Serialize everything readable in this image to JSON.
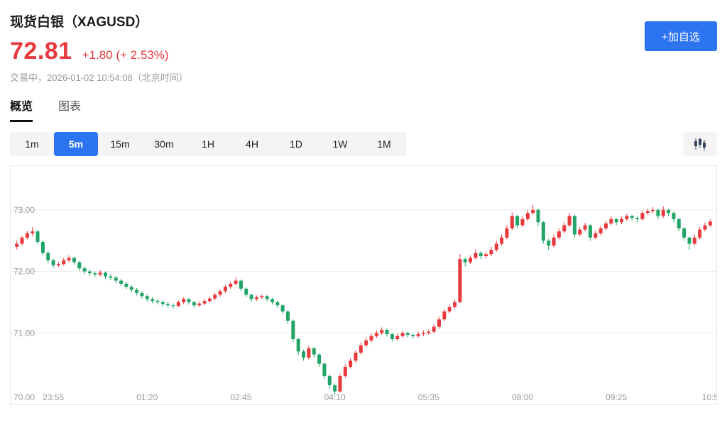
{
  "header": {
    "title": "现货白银（XAGUSD）",
    "price": "72.81",
    "change": "+1.80 (+ 2.53%)",
    "status": "交易中，2026-01-02 10:54:08（北京时间）",
    "watchlist_button": "+加自选"
  },
  "tabs": [
    {
      "label": "概览",
      "active": true
    },
    {
      "label": "图表",
      "active": false
    }
  ],
  "timeframes": {
    "options": [
      "1m",
      "5m",
      "15m",
      "30m",
      "1H",
      "4H",
      "1D",
      "1W",
      "1M"
    ],
    "active": "5m"
  },
  "colors": {
    "up": "#e8393d",
    "down": "#21a567",
    "red": "#e8393d",
    "accent": "#2d74f0",
    "axis_text": "#999999",
    "grid": "#ececec"
  },
  "chart_data": {
    "type": "candlestick",
    "symbol": "XAGUSD",
    "interval": "5m",
    "ylim": [
      69.85,
      73.7
    ],
    "grid": true,
    "y_ticks": [
      {
        "value": 73,
        "label": "73.00",
        "line": true
      },
      {
        "value": 72,
        "label": "72.00",
        "line": true
      },
      {
        "value": 71,
        "label": "71.00",
        "line": true
      },
      {
        "value": 70,
        "label": "70.00",
        "line": false
      }
    ],
    "x_ticks": [
      {
        "index": 7,
        "label": "23:55"
      },
      {
        "index": 25,
        "label": "01:20"
      },
      {
        "index": 43,
        "label": "02:45"
      },
      {
        "index": 61,
        "label": "04:10"
      },
      {
        "index": 79,
        "label": "05:35"
      },
      {
        "index": 97,
        "label": "08:00"
      },
      {
        "index": 115,
        "label": "09:25"
      },
      {
        "index": 133,
        "label": "10:5"
      }
    ],
    "candles": [
      [
        72.4,
        72.5,
        72.36,
        72.45
      ],
      [
        72.45,
        72.58,
        72.42,
        72.55
      ],
      [
        72.55,
        72.66,
        72.52,
        72.62
      ],
      [
        72.62,
        72.72,
        72.58,
        72.65
      ],
      [
        72.65,
        72.67,
        72.44,
        72.48
      ],
      [
        72.48,
        72.5,
        72.26,
        72.3
      ],
      [
        72.3,
        72.33,
        72.14,
        72.18
      ],
      [
        72.18,
        72.21,
        72.06,
        72.1
      ],
      [
        72.1,
        72.16,
        72.07,
        72.12
      ],
      [
        72.12,
        72.22,
        72.09,
        72.18
      ],
      [
        72.18,
        72.26,
        72.15,
        72.22
      ],
      [
        72.22,
        72.24,
        72.11,
        72.15
      ],
      [
        72.15,
        72.17,
        72.01,
        72.05
      ],
      [
        72.05,
        72.08,
        71.96,
        72.0
      ],
      [
        72.0,
        72.03,
        71.93,
        71.97
      ],
      [
        71.97,
        72.0,
        71.91,
        71.95
      ],
      [
        71.95,
        72.02,
        71.92,
        71.98
      ],
      [
        71.98,
        72.0,
        71.88,
        71.92
      ],
      [
        71.92,
        71.95,
        71.86,
        71.9
      ],
      [
        71.9,
        71.93,
        71.81,
        71.85
      ],
      [
        71.85,
        71.88,
        71.76,
        71.8
      ],
      [
        71.8,
        71.83,
        71.71,
        71.75
      ],
      [
        71.75,
        71.78,
        71.66,
        71.7
      ],
      [
        71.7,
        71.73,
        71.61,
        71.65
      ],
      [
        71.65,
        71.68,
        71.56,
        71.6
      ],
      [
        71.6,
        71.63,
        71.51,
        71.55
      ],
      [
        71.55,
        71.58,
        71.48,
        71.52
      ],
      [
        71.52,
        71.55,
        71.46,
        71.5
      ],
      [
        71.5,
        71.53,
        71.43,
        71.47
      ],
      [
        71.47,
        71.5,
        71.41,
        71.45
      ],
      [
        71.45,
        71.48,
        71.4,
        71.44
      ],
      [
        71.44,
        71.53,
        71.42,
        71.5
      ],
      [
        71.5,
        71.58,
        71.47,
        71.55
      ],
      [
        71.55,
        71.57,
        71.46,
        71.5
      ],
      [
        71.5,
        71.52,
        71.41,
        71.45
      ],
      [
        71.45,
        71.51,
        71.42,
        71.48
      ],
      [
        71.48,
        71.55,
        71.45,
        71.52
      ],
      [
        71.52,
        71.59,
        71.49,
        71.56
      ],
      [
        71.56,
        71.65,
        71.53,
        71.62
      ],
      [
        71.62,
        71.71,
        71.59,
        71.68
      ],
      [
        71.68,
        71.78,
        71.65,
        71.75
      ],
      [
        71.75,
        71.83,
        71.72,
        71.8
      ],
      [
        71.8,
        71.9,
        71.77,
        71.85
      ],
      [
        71.85,
        71.87,
        71.68,
        71.72
      ],
      [
        71.72,
        71.74,
        71.58,
        71.62
      ],
      [
        71.62,
        71.64,
        71.51,
        71.55
      ],
      [
        71.55,
        71.61,
        71.52,
        71.58
      ],
      [
        71.58,
        71.63,
        71.55,
        71.6
      ],
      [
        71.6,
        71.62,
        71.51,
        71.55
      ],
      [
        71.55,
        71.57,
        71.46,
        71.5
      ],
      [
        71.5,
        71.52,
        71.41,
        71.45
      ],
      [
        71.45,
        71.47,
        71.31,
        71.35
      ],
      [
        71.35,
        71.37,
        71.15,
        71.2
      ],
      [
        71.2,
        71.22,
        70.85,
        70.9
      ],
      [
        70.9,
        70.92,
        70.64,
        70.7
      ],
      [
        70.7,
        70.73,
        70.55,
        70.6
      ],
      [
        70.6,
        70.79,
        70.57,
        70.75
      ],
      [
        70.75,
        70.77,
        70.6,
        70.65
      ],
      [
        70.65,
        70.67,
        70.45,
        70.5
      ],
      [
        70.5,
        70.52,
        70.25,
        70.3
      ],
      [
        70.3,
        70.33,
        70.1,
        70.15
      ],
      [
        70.15,
        70.18,
        70.0,
        70.05
      ],
      [
        70.05,
        70.34,
        70.03,
        70.3
      ],
      [
        70.3,
        70.49,
        70.27,
        70.45
      ],
      [
        70.45,
        70.59,
        70.42,
        70.55
      ],
      [
        70.55,
        70.72,
        70.52,
        70.68
      ],
      [
        70.68,
        70.84,
        70.65,
        70.8
      ],
      [
        70.8,
        70.92,
        70.77,
        70.88
      ],
      [
        70.88,
        70.99,
        70.85,
        70.95
      ],
      [
        70.95,
        71.04,
        70.92,
        71.0
      ],
      [
        71.0,
        71.09,
        70.97,
        71.05
      ],
      [
        71.05,
        71.07,
        70.94,
        70.98
      ],
      [
        70.98,
        71.0,
        70.86,
        70.9
      ],
      [
        70.9,
        70.99,
        70.87,
        70.95
      ],
      [
        70.95,
        71.04,
        70.92,
        71.0
      ],
      [
        71.0,
        71.02,
        70.93,
        70.97
      ],
      [
        70.97,
        70.99,
        70.91,
        70.95
      ],
      [
        70.95,
        71.02,
        70.92,
        70.98
      ],
      [
        70.98,
        71.04,
        70.95,
        71.0
      ],
      [
        71.0,
        71.06,
        70.97,
        71.02
      ],
      [
        71.02,
        71.14,
        70.99,
        71.1
      ],
      [
        71.1,
        71.26,
        71.07,
        71.22
      ],
      [
        71.22,
        71.39,
        71.19,
        71.35
      ],
      [
        71.35,
        71.46,
        71.32,
        71.42
      ],
      [
        71.42,
        71.54,
        71.39,
        71.5
      ],
      [
        71.5,
        72.28,
        71.48,
        72.2
      ],
      [
        72.2,
        72.23,
        72.08,
        72.15
      ],
      [
        72.15,
        72.26,
        72.12,
        72.22
      ],
      [
        72.22,
        72.36,
        72.19,
        72.3
      ],
      [
        72.3,
        72.33,
        72.2,
        72.25
      ],
      [
        72.25,
        72.32,
        72.21,
        72.28
      ],
      [
        72.28,
        72.4,
        72.25,
        72.35
      ],
      [
        72.35,
        72.5,
        72.32,
        72.45
      ],
      [
        72.45,
        72.6,
        72.42,
        72.55
      ],
      [
        72.55,
        72.75,
        72.52,
        72.7
      ],
      [
        72.7,
        72.96,
        72.67,
        72.9
      ],
      [
        72.9,
        72.92,
        72.7,
        72.75
      ],
      [
        72.75,
        72.9,
        72.72,
        72.85
      ],
      [
        72.85,
        73.0,
        72.82,
        72.95
      ],
      [
        72.95,
        73.08,
        72.92,
        73.0
      ],
      [
        73.0,
        73.02,
        72.74,
        72.8
      ],
      [
        72.8,
        72.82,
        72.45,
        72.5
      ],
      [
        72.5,
        72.53,
        72.35,
        72.42
      ],
      [
        72.42,
        72.6,
        72.39,
        72.55
      ],
      [
        72.55,
        72.7,
        72.52,
        72.65
      ],
      [
        72.65,
        72.8,
        72.62,
        72.75
      ],
      [
        72.75,
        72.95,
        72.72,
        72.9
      ],
      [
        72.9,
        72.92,
        72.55,
        72.6
      ],
      [
        72.6,
        72.72,
        72.57,
        72.68
      ],
      [
        72.68,
        72.79,
        72.65,
        72.75
      ],
      [
        72.75,
        72.77,
        72.5,
        72.55
      ],
      [
        72.55,
        72.66,
        72.52,
        72.62
      ],
      [
        72.62,
        72.74,
        72.59,
        72.7
      ],
      [
        72.7,
        72.82,
        72.67,
        72.78
      ],
      [
        72.78,
        72.9,
        72.75,
        72.85
      ],
      [
        72.85,
        72.87,
        72.75,
        72.8
      ],
      [
        72.8,
        72.89,
        72.77,
        72.85
      ],
      [
        72.85,
        72.94,
        72.82,
        72.9
      ],
      [
        72.9,
        72.92,
        72.83,
        72.87
      ],
      [
        72.87,
        72.89,
        72.8,
        72.85
      ],
      [
        72.85,
        72.99,
        72.82,
        72.95
      ],
      [
        72.95,
        73.02,
        72.92,
        72.98
      ],
      [
        72.98,
        73.05,
        72.95,
        73.0
      ],
      [
        73.0,
        73.02,
        72.85,
        72.9
      ],
      [
        72.9,
        73.06,
        72.87,
        73.0
      ],
      [
        73.0,
        73.02,
        72.9,
        72.95
      ],
      [
        72.95,
        72.97,
        72.8,
        72.85
      ],
      [
        72.85,
        72.87,
        72.65,
        72.7
      ],
      [
        72.7,
        72.72,
        72.5,
        72.55
      ],
      [
        72.55,
        72.57,
        72.35,
        72.45
      ],
      [
        72.45,
        72.6,
        72.42,
        72.55
      ],
      [
        72.55,
        72.72,
        72.52,
        72.68
      ],
      [
        72.68,
        72.79,
        72.65,
        72.75
      ],
      [
        72.75,
        72.85,
        72.72,
        72.81
      ]
    ]
  }
}
